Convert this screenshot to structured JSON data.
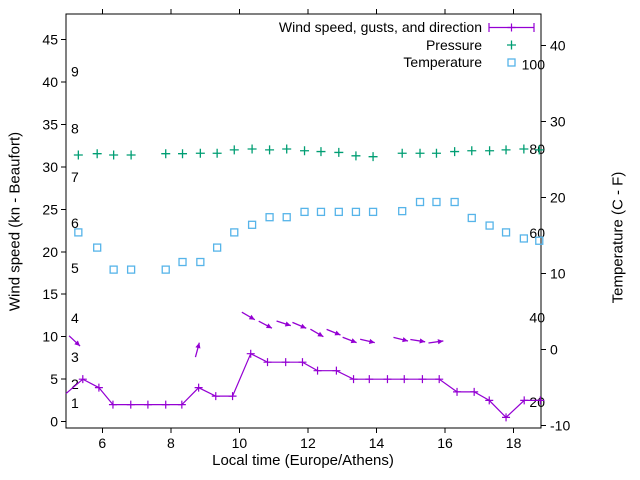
{
  "chart_data": {
    "type": "line",
    "xlabel": "Local time (Europe/Athens)",
    "ylabel_left": "Wind speed (kn - Beaufort)",
    "ylabel_right": "Temperature (C - F)",
    "x_ticks": [
      6,
      8,
      10,
      12,
      14,
      16,
      18
    ],
    "x_range": [
      4.94,
      18.8
    ],
    "y_left_ticks": [
      0,
      5,
      10,
      15,
      20,
      25,
      30,
      35,
      40,
      45
    ],
    "y_left_range_kn": [
      -0.75,
      48
    ],
    "y_right_ticks_c": [
      -10,
      0,
      10,
      20,
      30,
      40
    ],
    "y_right_range_c": [
      -10.35,
      44.15
    ],
    "fahrenheit_inner_labels": [
      20,
      40,
      60,
      80,
      100
    ],
    "beaufort_inner_labels": [
      {
        "label": "1",
        "kn": 2.2
      },
      {
        "label": "2",
        "kn": 4.45
      },
      {
        "label": "3",
        "kn": 7.6
      },
      {
        "label": "4",
        "kn": 12.2
      },
      {
        "label": "5",
        "kn": 18.1
      },
      {
        "label": "6",
        "kn": 23.4
      },
      {
        "label": "7",
        "kn": 28.8
      },
      {
        "label": "8",
        "kn": 34.5
      },
      {
        "label": "9",
        "kn": 41.2
      }
    ],
    "grid": false,
    "legend_position": "top-right-inside",
    "series": {
      "wind": {
        "name": "Wind speed, gusts, and direction",
        "color": "#9400d3",
        "marker": "plus",
        "lead_point": {
          "t": 4.94,
          "kn": 3.3
        },
        "t": [
          5.43,
          5.9,
          6.31,
          6.83,
          7.33,
          7.85,
          8.32,
          8.81,
          9.31,
          9.8,
          10.33,
          10.82,
          11.35,
          11.84,
          12.28,
          12.83,
          13.33,
          13.79,
          14.32,
          14.81,
          15.34,
          15.83,
          16.35,
          16.85,
          17.29,
          17.78,
          18.31,
          18.78
        ],
        "kn": [
          5,
          4,
          2,
          2,
          2,
          2,
          2,
          4,
          3,
          3,
          8,
          7,
          7,
          7,
          6,
          6,
          5,
          5,
          5,
          5,
          5,
          5,
          3.5,
          3.5,
          2.5,
          0.5,
          2.5,
          2.5
        ]
      },
      "gusts": {
        "color": "#9400d3",
        "style": "direction arrows plotted at gust speed",
        "arrows": [
          {
            "t": 5.35,
            "kn": 8.9,
            "angle_deg": -43
          },
          {
            "t": 8.83,
            "kn": 9.3,
            "angle_deg": 75
          },
          {
            "t": 10.45,
            "kn": 12.0,
            "angle_deg": -30
          },
          {
            "t": 10.95,
            "kn": 11.0,
            "angle_deg": -28
          },
          {
            "t": 11.5,
            "kn": 11.3,
            "angle_deg": -18
          },
          {
            "t": 11.95,
            "kn": 11.0,
            "angle_deg": -23
          },
          {
            "t": 12.45,
            "kn": 10.0,
            "angle_deg": -30
          },
          {
            "t": 12.95,
            "kn": 10.2,
            "angle_deg": -22
          },
          {
            "t": 13.42,
            "kn": 9.3,
            "angle_deg": -21
          },
          {
            "t": 13.95,
            "kn": 9.3,
            "angle_deg": -13
          },
          {
            "t": 14.92,
            "kn": 9.5,
            "angle_deg": -14
          },
          {
            "t": 15.42,
            "kn": 9.4,
            "angle_deg": -9
          },
          {
            "t": 15.95,
            "kn": 9.5,
            "angle_deg": 8
          }
        ]
      },
      "pressure": {
        "name": "Pressure",
        "color": "#009e73",
        "marker": "plus",
        "t": [
          5.3,
          5.85,
          6.33,
          6.84,
          7.85,
          8.34,
          8.86,
          9.35,
          9.85,
          10.37,
          10.88,
          11.38,
          11.9,
          12.38,
          12.9,
          13.4,
          13.9,
          14.75,
          15.27,
          15.75,
          16.28,
          16.78,
          17.3,
          17.78,
          18.3,
          18.75
        ],
        "kn_equivalent": [
          31.4,
          31.55,
          31.4,
          31.4,
          31.55,
          31.55,
          31.6,
          31.6,
          32.0,
          32.1,
          32.0,
          32.1,
          31.9,
          31.8,
          31.7,
          31.3,
          31.2,
          31.6,
          31.6,
          31.6,
          31.8,
          31.9,
          31.9,
          32.0,
          32.1,
          32.0
        ]
      },
      "temperature": {
        "name": "Temperature",
        "color": "#56b4e9",
        "marker": "open-square",
        "t": [
          5.3,
          5.85,
          6.33,
          6.84,
          7.85,
          8.34,
          8.86,
          9.35,
          9.85,
          10.37,
          10.88,
          11.38,
          11.9,
          12.38,
          12.9,
          13.4,
          13.9,
          14.75,
          15.27,
          15.75,
          16.28,
          16.78,
          17.3,
          17.78,
          18.3,
          18.75
        ],
        "c": [
          15.4,
          13.4,
          10.5,
          10.5,
          10.5,
          11.5,
          11.5,
          13.4,
          15.4,
          16.4,
          17.4,
          17.4,
          18.1,
          18.1,
          18.1,
          18.1,
          18.1,
          18.2,
          19.4,
          19.4,
          19.4,
          17.3,
          16.3,
          15.4,
          14.6,
          14.3
        ]
      }
    }
  }
}
